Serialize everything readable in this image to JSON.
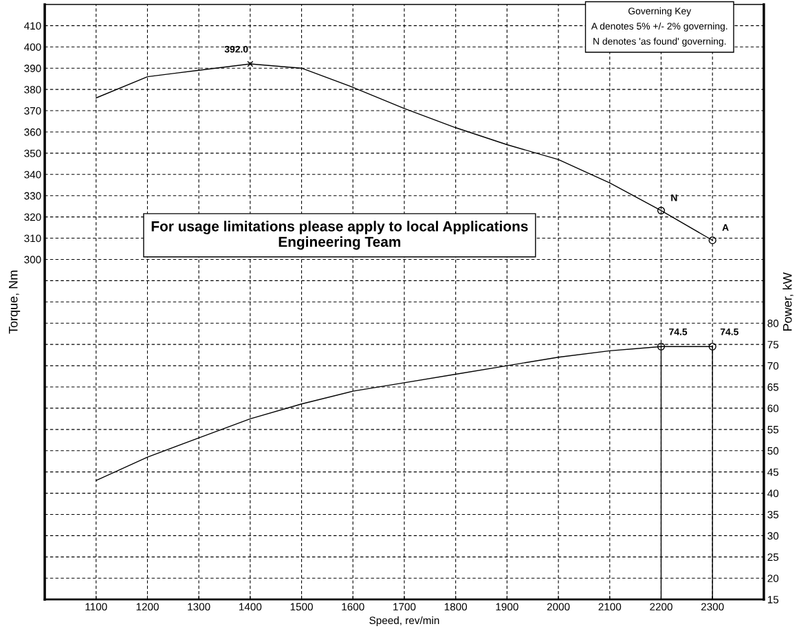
{
  "chart_data": {
    "type": "line",
    "xlabel": "Speed, rev/min",
    "ylabel": "Torque, Nm",
    "y2label": "Power, kW",
    "xlim": [
      1000,
      2400
    ],
    "xticks": [
      1100,
      1200,
      1300,
      1400,
      1500,
      1600,
      1700,
      1800,
      1900,
      2000,
      2100,
      2200,
      2300
    ],
    "ylim": [
      140,
      420
    ],
    "yticks": [
      {
        "value": 150,
        "label": null
      },
      {
        "value": 160,
        "label": null
      },
      {
        "value": 170,
        "label": null
      },
      {
        "value": 180,
        "label": null
      },
      {
        "value": 190,
        "label": null
      },
      {
        "value": 200,
        "label": null
      },
      {
        "value": 210,
        "label": null
      },
      {
        "value": 220,
        "label": null
      },
      {
        "value": 230,
        "label": null
      },
      {
        "value": 240,
        "label": null
      },
      {
        "value": 250,
        "label": null
      },
      {
        "value": 260,
        "label": null
      },
      {
        "value": 270,
        "label": null
      },
      {
        "value": 280,
        "label": null
      },
      {
        "value": 290,
        "label": null
      },
      300,
      310,
      320,
      330,
      340,
      350,
      360,
      370,
      380,
      390,
      400,
      410
    ],
    "y2lim": [
      15,
      155
    ],
    "y2ticks": [
      15,
      20,
      25,
      30,
      35,
      40,
      45,
      50,
      55,
      60,
      65,
      70,
      75,
      80
    ],
    "grid": true,
    "legend": false,
    "marker": "none",
    "line_style": "solid",
    "series": [
      {
        "color": "#000000",
        "x": [
          1100,
          1200,
          1300,
          1400,
          1500,
          1600,
          1700,
          1800,
          1900,
          2000,
          2100,
          2200,
          2300
        ],
        "values": [
          376,
          386,
          389,
          392,
          390,
          381,
          371,
          362,
          354,
          347,
          336,
          323,
          309
        ]
      },
      {
        "type": "scatter",
        "marker": "cross",
        "color": "#000000",
        "x": [
          1400
        ],
        "values": [
          392
        ],
        "value_labels": [
          "392.0"
        ]
      },
      {
        "type": "scatter",
        "marker": "circle",
        "color": "#000000",
        "x": [
          2200,
          2300
        ],
        "values": [
          323,
          309
        ]
      },
      {
        "axis": "y2",
        "color": "#000000",
        "x": [
          1100,
          1200,
          1300,
          1400,
          1500,
          1600,
          1700,
          1800,
          1900,
          2000,
          2100,
          2200,
          2300
        ],
        "values": [
          43,
          48.5,
          53,
          57.5,
          61,
          64,
          66,
          68,
          70,
          72,
          73.5,
          74.5,
          74.5
        ]
      },
      {
        "axis": "y2",
        "color": "#000000",
        "x": [
          2200,
          2200
        ],
        "values": [
          15,
          74.5
        ]
      },
      {
        "axis": "y2",
        "color": "#000000",
        "x": [
          2300,
          2300
        ],
        "values": [
          15,
          74.5
        ]
      },
      {
        "axis": "y2",
        "type": "scatter",
        "marker": "circle",
        "color": "#000000",
        "x": [
          2200,
          2300
        ],
        "values": [
          74.5,
          74.5
        ],
        "value_labels": [
          "74.5",
          "74.5"
        ]
      }
    ],
    "annotations": [
      {
        "text": "N",
        "x": 2200,
        "y": 323
      },
      {
        "text": "A",
        "x": 2300,
        "y": 309
      },
      "Governing Key\nA denotes 5% +/- 2% governing.\nN denotes 'as found' governing.",
      "For usage limitations please apply to local Applications\nEngineering Team"
    ]
  }
}
